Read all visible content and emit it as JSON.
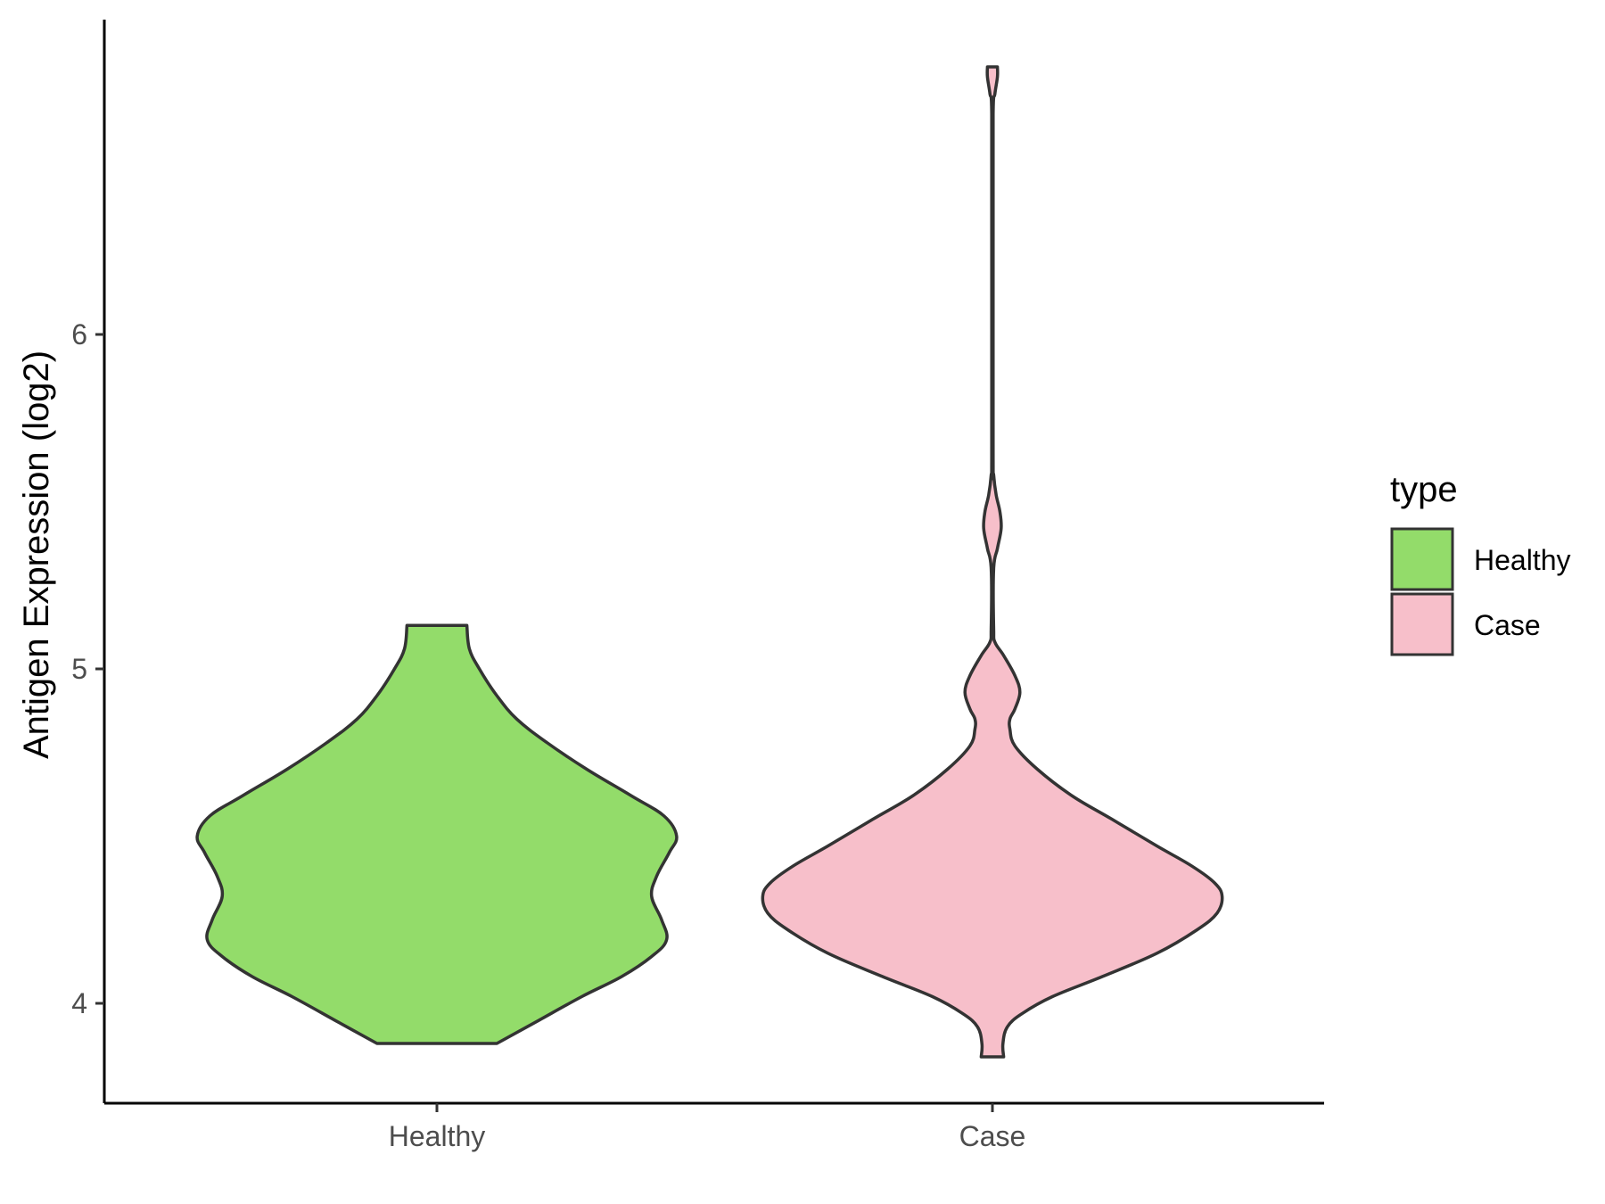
{
  "chart_data": {
    "type": "violin",
    "xlabel": "",
    "ylabel": "Antigen Expression (log2)",
    "categories": [
      "Healthy",
      "Case"
    ],
    "y_ticks": [
      "4",
      "5",
      "6"
    ],
    "ylim": [
      3.7,
      6.95
    ],
    "grid": false,
    "legend": {
      "title": "type",
      "position": "right",
      "entries": [
        "Healthy",
        "Case"
      ]
    },
    "series": [
      {
        "category": "Healthy",
        "color": "#93dc6a",
        "min": 3.88,
        "max": 5.13,
        "density": [
          [
            3.88,
            0.24
          ],
          [
            3.95,
            0.41
          ],
          [
            4.02,
            0.58
          ],
          [
            4.08,
            0.74
          ],
          [
            4.14,
            0.86
          ],
          [
            4.19,
            0.92
          ],
          [
            4.25,
            0.9
          ],
          [
            4.32,
            0.86
          ],
          [
            4.38,
            0.88
          ],
          [
            4.45,
            0.93
          ],
          [
            4.5,
            0.96
          ],
          [
            4.56,
            0.91
          ],
          [
            4.62,
            0.78
          ],
          [
            4.7,
            0.6
          ],
          [
            4.78,
            0.44
          ],
          [
            4.85,
            0.32
          ],
          [
            4.92,
            0.24
          ],
          [
            5.0,
            0.17
          ],
          [
            5.06,
            0.13
          ],
          [
            5.13,
            0.12
          ]
        ]
      },
      {
        "category": "Case",
        "color": "#f7bfca",
        "min": 3.84,
        "max": 6.8,
        "density": [
          [
            3.84,
            0.045
          ],
          [
            3.88,
            0.042
          ],
          [
            3.93,
            0.06
          ],
          [
            3.97,
            0.12
          ],
          [
            4.02,
            0.24
          ],
          [
            4.08,
            0.44
          ],
          [
            4.15,
            0.66
          ],
          [
            4.22,
            0.82
          ],
          [
            4.27,
            0.9
          ],
          [
            4.32,
            0.92
          ],
          [
            4.36,
            0.89
          ],
          [
            4.41,
            0.8
          ],
          [
            4.47,
            0.66
          ],
          [
            4.55,
            0.48
          ],
          [
            4.62,
            0.32
          ],
          [
            4.7,
            0.18
          ],
          [
            4.77,
            0.09
          ],
          [
            4.82,
            0.07
          ],
          [
            4.85,
            0.07
          ],
          [
            4.88,
            0.09
          ],
          [
            4.93,
            0.11
          ],
          [
            4.98,
            0.09
          ],
          [
            5.04,
            0.045
          ],
          [
            5.08,
            0.01
          ],
          [
            5.12,
            0.005
          ],
          [
            5.3,
            0.005
          ],
          [
            5.36,
            0.02
          ],
          [
            5.42,
            0.035
          ],
          [
            5.47,
            0.03
          ],
          [
            5.52,
            0.015
          ],
          [
            5.58,
            0.005
          ],
          [
            5.64,
            0.003
          ],
          [
            6.3,
            0.003
          ],
          [
            6.66,
            0.003
          ],
          [
            6.72,
            0.01
          ],
          [
            6.77,
            0.02
          ],
          [
            6.8,
            0.02
          ]
        ]
      }
    ]
  }
}
